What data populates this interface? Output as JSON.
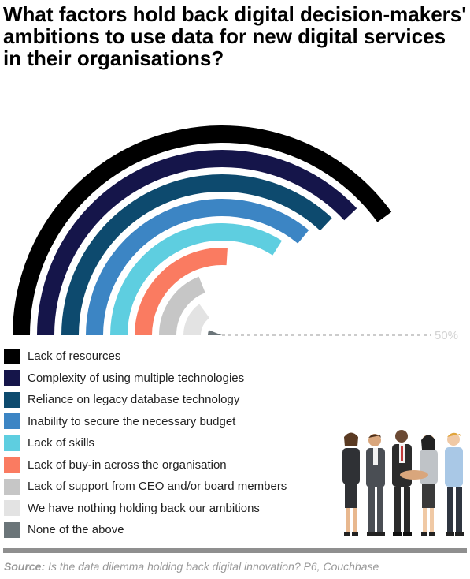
{
  "title": "What factors hold back digital decision-makers' ambitions to use data for new digital services in their organisations?",
  "source": {
    "label": "Source:",
    "text": "Is the data dilemma holding back digital innovation? P6, Couchbase"
  },
  "chart_data": {
    "type": "radial-bar",
    "title": "What factors hold back digital decision-makers' ambitions to use data for new digital services in their organisations?",
    "reference_label": "50%",
    "reference_value": 50,
    "series": [
      {
        "name": "Lack of resources",
        "value": 40,
        "color": "#000000"
      },
      {
        "name": "Complexity of using multiple technologies",
        "value": 38,
        "color": "#15154a"
      },
      {
        "name": "Reliance on legacy database technology",
        "value": 37,
        "color": "#0d4a6e"
      },
      {
        "name": "Inability to secure the necessary budget",
        "value": 36,
        "color": "#3c85c4"
      },
      {
        "name": "Lack of skills",
        "value": 34,
        "color": "#5ecee0"
      },
      {
        "name": "Lack of buy-in across the organisation",
        "value": 26,
        "color": "#fa7b61"
      },
      {
        "name": "Lack of support from CEO and/or board members",
        "value": 19,
        "color": "#c6c6c6"
      },
      {
        "name": "We have nothing holding back our ambitions",
        "value": 15,
        "color": "#e3e3e3"
      },
      {
        "name": "None of the above",
        "value": 6,
        "color": "#6b7579"
      }
    ]
  }
}
